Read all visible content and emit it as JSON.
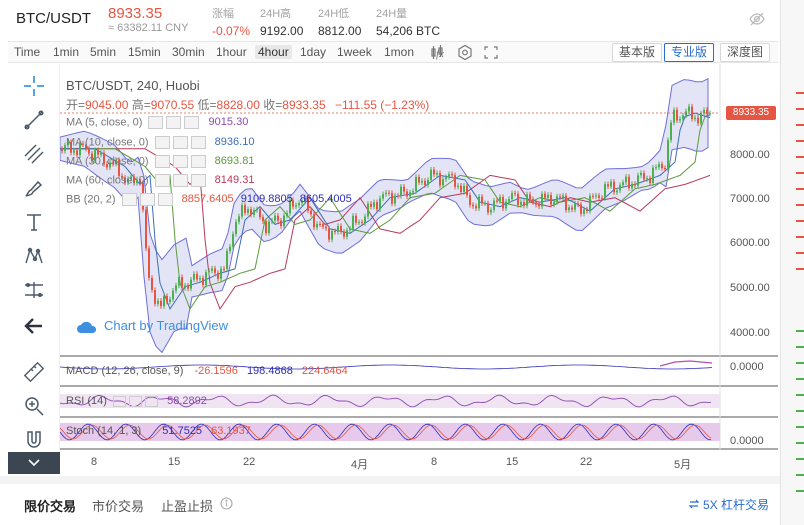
{
  "ticker": {
    "pair": "BTC/USDT",
    "last_price": "8933.35",
    "cny_price": "≈ 63382.11 CNY",
    "change_label": "涨幅",
    "change_value": "-0.07%",
    "high_label": "24H高",
    "high_value": "9192.00",
    "low_label": "24H低",
    "low_value": "8812.00",
    "volume_label": "24H量",
    "volume_value": "54,206 BTC",
    "settings_icon": "eye-slash-icon"
  },
  "toolbar": {
    "timeframes": [
      "Time",
      "1min",
      "5min",
      "15min",
      "30min",
      "1hour",
      "4hour",
      "1day",
      "1week",
      "1mon"
    ],
    "active_timeframe": "4hour",
    "tools": [
      "candle-settings-icon",
      "indicator-icon",
      "hexagon-settings-icon",
      "fullscreen-icon"
    ],
    "views": [
      "基本版",
      "专业版",
      "深度图"
    ],
    "active_view": "专业版"
  },
  "left_tools": [
    "crosshair-icon",
    "trend-line-icon",
    "fib-icon",
    "brush-icon",
    "text-icon",
    "pattern-icon",
    "measure-icon",
    "back-arrow-icon",
    "ruler-icon",
    "zoom-in-icon",
    "magnet-icon"
  ],
  "chart": {
    "title_line": "BTC/USDT, 240, Huobi",
    "ohlc": {
      "open_label": "开=",
      "open": "9045.00",
      "high_label": "高=",
      "high": "9070.55",
      "low_label": "低=",
      "low": "8828.00",
      "close_label": "收=",
      "close": "8933.35",
      "change": "−111.55 (−1.23%)"
    },
    "indicators": [
      {
        "label": "MA (5, close, 0)",
        "value": "9015.30",
        "color": "#8a4bb0"
      },
      {
        "label": "MA (10, close, 0)",
        "value": "8936.10",
        "color": "#3a6fb8"
      },
      {
        "label": "MA (30, close, 0)",
        "value": "8693.81",
        "color": "#5a9b3c"
      },
      {
        "label": "MA (60, close, 0)",
        "value": "8149.31",
        "color": "#b8395a"
      }
    ],
    "bb": {
      "label": "BB (20, 2)",
      "values": [
        "8857.6405",
        "9109.8805",
        "8605.4005"
      ],
      "colors": [
        "#e55541",
        "#2d2db8",
        "#2d2db8"
      ]
    },
    "price_tag": "8933.35",
    "y_ticks": [
      "8000.00",
      "7000.00",
      "6000.00",
      "5000.00",
      "4000.00"
    ],
    "x_ticks": [
      "8",
      "15",
      "22",
      "4月",
      "8",
      "15",
      "22",
      "5月"
    ],
    "watermark": "Chart by TradingView",
    "macd": {
      "label": "MACD (12, 26, close, 9)",
      "values": [
        "-26.1596",
        "198.4868",
        "224.6464"
      ],
      "axis": "0.0000"
    },
    "rsi": {
      "label": "RSI (14)",
      "value": "58.2892"
    },
    "stoch": {
      "label": "Stoch (14, 1, 3)",
      "values": [
        "51.7525",
        "63.1937"
      ],
      "axis": "0.0000"
    },
    "colors": {
      "up": "#4caf50",
      "down": "#e55541",
      "band_fill": "#e3e5f7",
      "band_line": "#6f6fd8"
    }
  },
  "order_tabs": {
    "tabs": [
      "限价交易",
      "市价交易",
      "止盈止损"
    ],
    "active": "限价交易",
    "info_icon": "info-circle-icon",
    "leverage_link": "5X 杠杆交易",
    "leverage_icon": "transfer-icon"
  }
}
